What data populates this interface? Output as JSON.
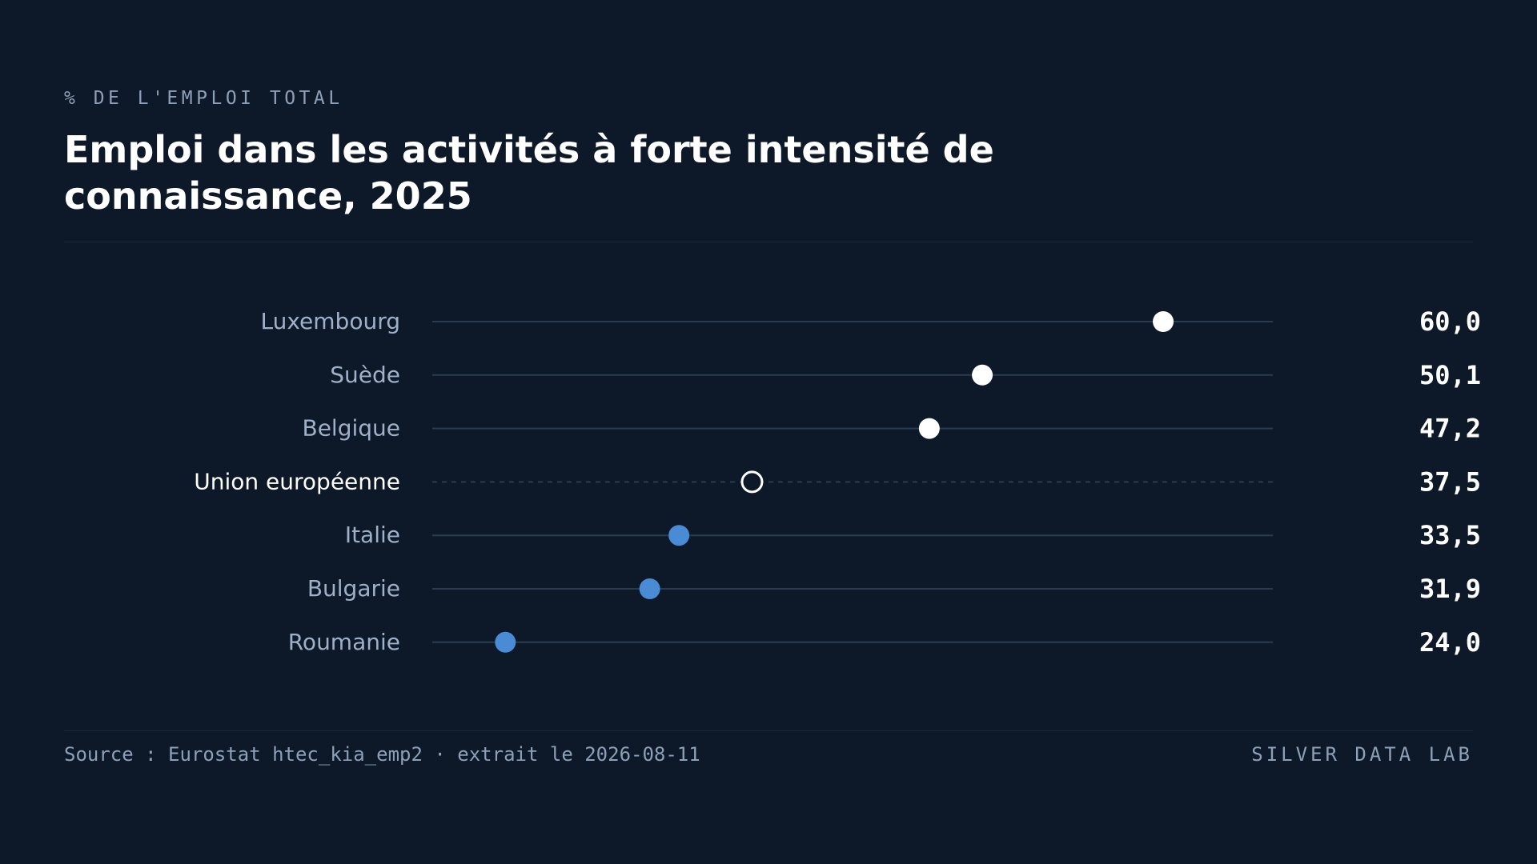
{
  "header": {
    "kicker": "% DE L'EMPLOI TOTAL",
    "title": "Emploi dans les activités à forte intensité de connaissance, 2025"
  },
  "footer": {
    "source": "Source : Eurostat htec_kia_emp2 · extrait le 2026-08-11",
    "brand": "SILVER DATA LAB"
  },
  "colors": {
    "background": "#0d1929",
    "above_average": "#ffffff",
    "below_average": "#4a8bd6",
    "reference_fill": "#0d1929",
    "track": "#2a3c50",
    "label": "#9fb0c8",
    "label_reference": "#ffffff",
    "value_text": "#ffffff"
  },
  "chart_data": {
    "type": "dot",
    "orientation": "horizontal",
    "unit": "% de l'emploi total",
    "xlim": [
      20,
      66
    ],
    "grid": false,
    "legend": "none",
    "reference": "Union européenne",
    "categories": [
      "Luxembourg",
      "Suède",
      "Belgique",
      "Union européenne",
      "Italie",
      "Bulgarie",
      "Roumanie"
    ],
    "values": [
      60.0,
      50.1,
      47.2,
      37.5,
      33.5,
      31.9,
      24.0
    ],
    "value_labels": [
      "60,0",
      "50,1",
      "47,2",
      "37,5",
      "33,5",
      "31,9",
      "24,0"
    ]
  }
}
